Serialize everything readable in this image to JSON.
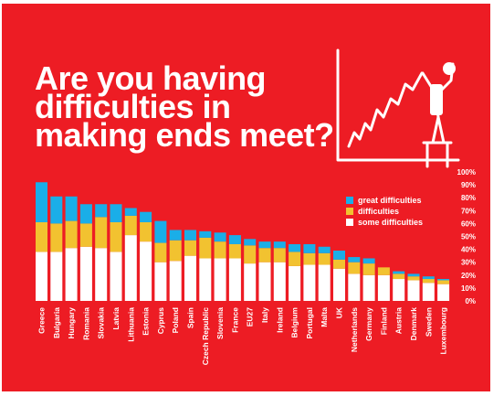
{
  "colors": {
    "background": "#ed1c24",
    "great": "#1aaee8",
    "difficulties": "#f2c230",
    "some": "#ffffff",
    "text": "#ffffff"
  },
  "headline": {
    "line1": "Are you having",
    "line2": "difficulties in",
    "line3": "making ends meet?"
  },
  "illustration": {
    "icon": "person-on-stool-drawing-rising-graph-icon"
  },
  "chart_data": {
    "type": "bar",
    "stacked": true,
    "title": "Are you having difficulties in making ends meet?",
    "categories": [
      "Greece",
      "Bulgaria",
      "Hungary",
      "Romania",
      "Slovakia",
      "Latvia",
      "Lithuania",
      "Estonia",
      "Cyprus",
      "Poland",
      "Spain",
      "Czech Republic",
      "Slovenia",
      "France",
      "EU27",
      "Italy",
      "Ireland",
      "Belgium",
      "Portugal",
      "Malta",
      "UK",
      "Netherlands",
      "Germany",
      "Finland",
      "Austria",
      "Denmark",
      "Sweden",
      "Luxembourg"
    ],
    "series": [
      {
        "name": "some difficulties",
        "values": [
          38,
          38,
          41,
          42,
          41,
          38,
          51,
          46,
          30,
          31,
          35,
          33,
          33,
          33,
          29,
          30,
          30,
          27,
          28,
          28,
          25,
          21,
          20,
          20,
          17,
          16,
          14,
          13
        ]
      },
      {
        "name": "difficulties",
        "values": [
          23,
          22,
          21,
          18,
          24,
          23,
          15,
          15,
          15,
          16,
          12,
          16,
          13,
          11,
          14,
          11,
          11,
          11,
          9,
          9,
          7,
          9,
          9,
          6,
          4,
          3,
          3,
          3
        ]
      },
      {
        "name": "great difficulties",
        "values": [
          31,
          21,
          19,
          15,
          10,
          14,
          6,
          8,
          17,
          8,
          8,
          5,
          7,
          7,
          5,
          5,
          5,
          6,
          7,
          5,
          7,
          4,
          4,
          0,
          2,
          2,
          2,
          1
        ]
      }
    ],
    "ylim": [
      0,
      100
    ],
    "yticks": [
      "0%",
      "10%",
      "20%",
      "30%",
      "40%",
      "50%",
      "60%",
      "70%",
      "80%",
      "90%",
      "100%"
    ],
    "legend_position": "right",
    "grid": false
  }
}
